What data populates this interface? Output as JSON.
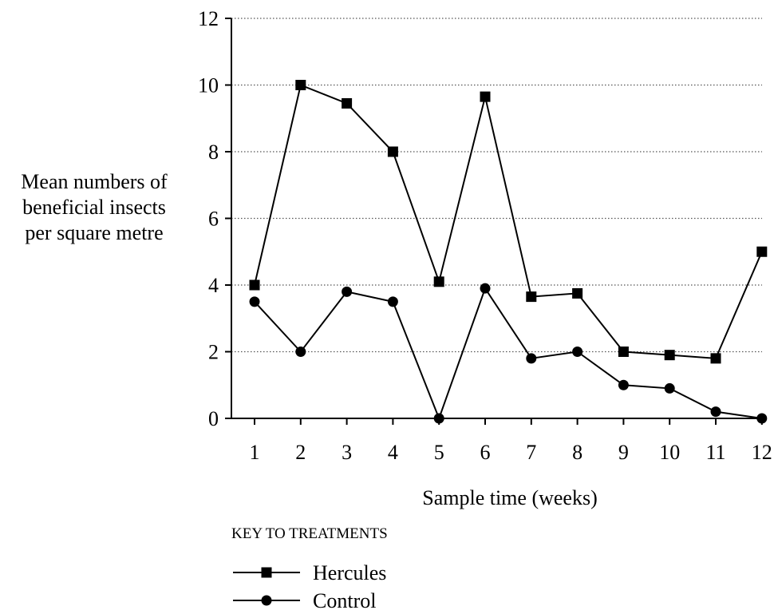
{
  "chart_data": {
    "type": "line",
    "title": "",
    "xlabel": "Sample time (weeks)",
    "ylabel_lines": [
      "Mean numbers of",
      "beneficial insects",
      "per square metre"
    ],
    "x": [
      1,
      2,
      3,
      4,
      5,
      6,
      7,
      8,
      9,
      10,
      11,
      12
    ],
    "xlim": [
      0.5,
      12
    ],
    "ylim": [
      0,
      12
    ],
    "y_ticks": [
      0,
      2,
      4,
      6,
      8,
      10,
      12
    ],
    "grid": "horizontal dotted",
    "series": [
      {
        "name": "Hercules",
        "marker": "square",
        "values": [
          4.0,
          10.0,
          9.45,
          8.0,
          4.1,
          9.65,
          3.65,
          3.75,
          2.0,
          1.9,
          1.8,
          5.0
        ]
      },
      {
        "name": "Control",
        "marker": "circle",
        "values": [
          3.5,
          2.0,
          3.8,
          3.5,
          0.0,
          3.9,
          1.8,
          2.0,
          1.0,
          0.9,
          0.2,
          0.0
        ]
      }
    ],
    "legend": {
      "title": "KEY TO TREATMENTS",
      "placement": "bottom-left"
    }
  }
}
